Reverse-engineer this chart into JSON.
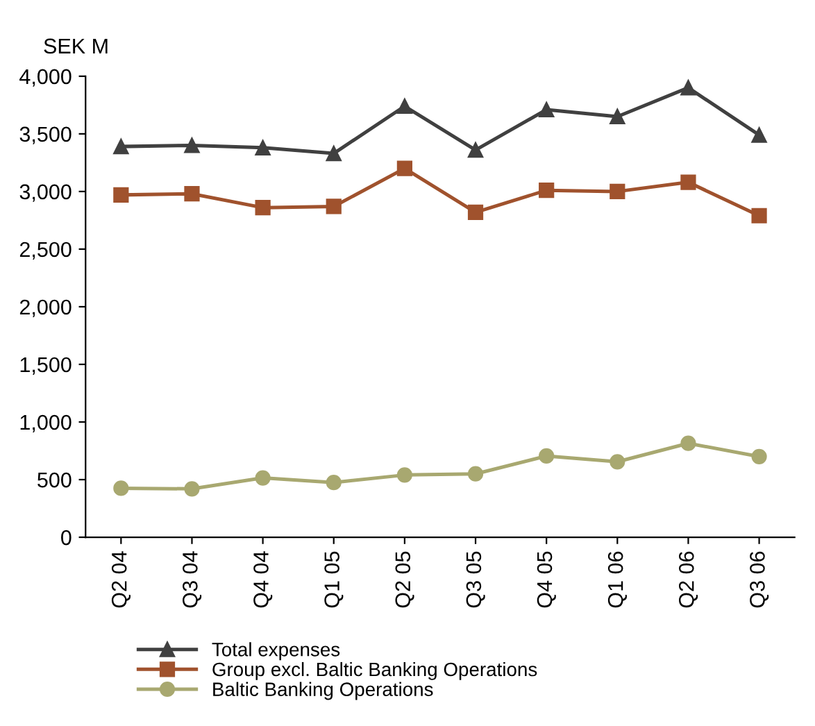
{
  "chart_data": {
    "type": "line",
    "ylabel": "SEK M",
    "categories": [
      "Q2 04",
      "Q3 04",
      "Q4 04",
      "Q1 05",
      "Q2 05",
      "Q3 05",
      "Q4 05",
      "Q1 06",
      "Q2 06",
      "Q3 06"
    ],
    "series": [
      {
        "name": "Total expenses",
        "color": "#404040",
        "marker": "triangle",
        "values": [
          3390,
          3400,
          3380,
          3330,
          3740,
          3360,
          3710,
          3650,
          3900,
          3490
        ]
      },
      {
        "name": "Group excl. Baltic Banking Operations",
        "color": "#a0522d",
        "marker": "square",
        "values": [
          2970,
          2980,
          2860,
          2870,
          3200,
          2820,
          3010,
          3000,
          3080,
          2790
        ]
      },
      {
        "name": "Baltic Banking Operations",
        "color": "#a8a870",
        "marker": "circle",
        "values": [
          425,
          420,
          515,
          475,
          540,
          550,
          705,
          655,
          815,
          700
        ]
      }
    ],
    "ylim": [
      0,
      4000
    ],
    "yticks": [
      {
        "value": 0,
        "label": "0"
      },
      {
        "value": 500,
        "label": "500"
      },
      {
        "value": 1000,
        "label": "1,000"
      },
      {
        "value": 1500,
        "label": "1,500"
      },
      {
        "value": 2000,
        "label": "2,000"
      },
      {
        "value": 2500,
        "label": "2,500"
      },
      {
        "value": 3000,
        "label": "3,000"
      },
      {
        "value": 3500,
        "label": "3,500"
      },
      {
        "value": 4000,
        "label": "4,000"
      }
    ],
    "grid": false,
    "legend": "bottom",
    "line_style": "solid"
  }
}
